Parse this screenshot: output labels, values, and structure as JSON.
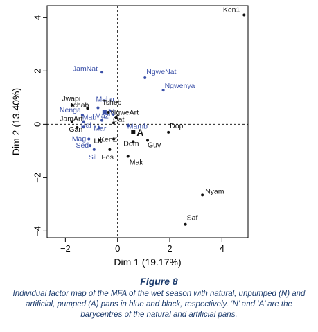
{
  "chart_data": {
    "type": "scatter",
    "title": "",
    "xlabel": "Dim 1 (19.17%)",
    "ylabel": "Dim 2 (13.40%)",
    "xlim": [
      -2.7,
      5.0
    ],
    "ylim": [
      -4.25,
      4.45
    ],
    "xticks": [
      -2,
      0,
      2,
      4
    ],
    "yticks": [
      -4,
      -2,
      0,
      2,
      4
    ],
    "xtick_labels": [
      "−2",
      "0",
      "2",
      "4"
    ],
    "ytick_labels": [
      "−4",
      "−2",
      "0",
      "2",
      "4"
    ],
    "reference_lines": {
      "x": 0,
      "y": 0,
      "style": "dashed"
    },
    "grid": false,
    "colors": {
      "natural": "#3a50a8",
      "artificial": "#111111"
    },
    "groups": [
      {
        "key": "natural",
        "description": "natural, unpumped (N) pans"
      },
      {
        "key": "artificial",
        "description": "artificial, pumped (A) pans"
      }
    ],
    "points": [
      {
        "label": "Ken1",
        "x": 4.85,
        "y": 4.1,
        "group": "artificial"
      },
      {
        "label": "JamNat",
        "x": -0.6,
        "y": 1.95,
        "group": "natural"
      },
      {
        "label": "NgweNat",
        "x": 1.05,
        "y": 1.75,
        "group": "natural"
      },
      {
        "label": "Ngwenya",
        "x": 1.75,
        "y": 1.28,
        "group": "natural"
      },
      {
        "label": "Jwapi",
        "x": -1.75,
        "y": 0.72,
        "group": "artificial"
      },
      {
        "label": "Mahu",
        "x": -0.75,
        "y": 0.62,
        "group": "natural"
      },
      {
        "label": "Tchab",
        "x": -1.15,
        "y": 0.6,
        "group": "artificial"
      },
      {
        "label": "N",
        "x": -0.5,
        "y": 0.45,
        "group": "natural",
        "barycentre": true
      },
      {
        "label": "Tsheb",
        "x": -0.35,
        "y": 0.45,
        "group": "artificial"
      },
      {
        "label": "Nenga",
        "x": -1.35,
        "y": 0.35,
        "group": "natural"
      },
      {
        "label": "NgweArt",
        "x": -0.05,
        "y": 0.25,
        "group": "artificial"
      },
      {
        "label": "JamArt",
        "x": -1.75,
        "y": 0.1,
        "group": "artificial"
      },
      {
        "label": "Mab",
        "x": -1.3,
        "y": 0.1,
        "group": "natural"
      },
      {
        "label": "Maz",
        "x": -0.6,
        "y": 0.15,
        "group": "natural"
      },
      {
        "label": "Cat",
        "x": -0.15,
        "y": 0.05,
        "group": "artificial"
      },
      {
        "label": "Gan",
        "x": -1.55,
        "y": -0.12,
        "group": "artificial"
      },
      {
        "label": "Bal",
        "x": -1.3,
        "y": -0.1,
        "group": "natural"
      },
      {
        "label": "Mar",
        "x": -0.7,
        "y": -0.13,
        "group": "natural"
      },
      {
        "label": "Mamb",
        "x": 0.4,
        "y": -0.05,
        "group": "natural"
      },
      {
        "label": "Dop",
        "x": 1.95,
        "y": -0.3,
        "group": "artificial"
      },
      {
        "label": "A",
        "x": 0.6,
        "y": -0.3,
        "group": "artificial",
        "barycentre": true
      },
      {
        "label": "Mag",
        "x": -1.1,
        "y": -0.55,
        "group": "natural"
      },
      {
        "label": "Liv",
        "x": -0.7,
        "y": -0.6,
        "group": "artificial"
      },
      {
        "label": "KenZ",
        "x": -0.15,
        "y": -0.55,
        "group": "artificial"
      },
      {
        "label": "Dom",
        "x": 0.6,
        "y": -0.65,
        "group": "artificial"
      },
      {
        "label": "Guv",
        "x": 1.15,
        "y": -0.6,
        "group": "artificial"
      },
      {
        "label": "Sed",
        "x": -1.05,
        "y": -0.8,
        "group": "natural"
      },
      {
        "label": "Sil",
        "x": -0.9,
        "y": -0.95,
        "group": "natural"
      },
      {
        "label": "Fos",
        "x": -0.3,
        "y": -0.95,
        "group": "artificial"
      },
      {
        "label": "Mak",
        "x": 0.4,
        "y": -1.2,
        "group": "artificial"
      },
      {
        "label": "Nyam",
        "x": 3.25,
        "y": -2.65,
        "group": "artificial"
      },
      {
        "label": "Saf",
        "x": 2.6,
        "y": -3.75,
        "group": "artificial"
      }
    ]
  },
  "caption": {
    "figure_label": "Figure 8",
    "text": "Individual factor map of the MFA of the wet season with natural, unpumped (N) and artificial, pumped (A) pans in blue and black, respectively. ‘N’ and ‘A’ are the barycentres of the natural and artificial pans."
  }
}
